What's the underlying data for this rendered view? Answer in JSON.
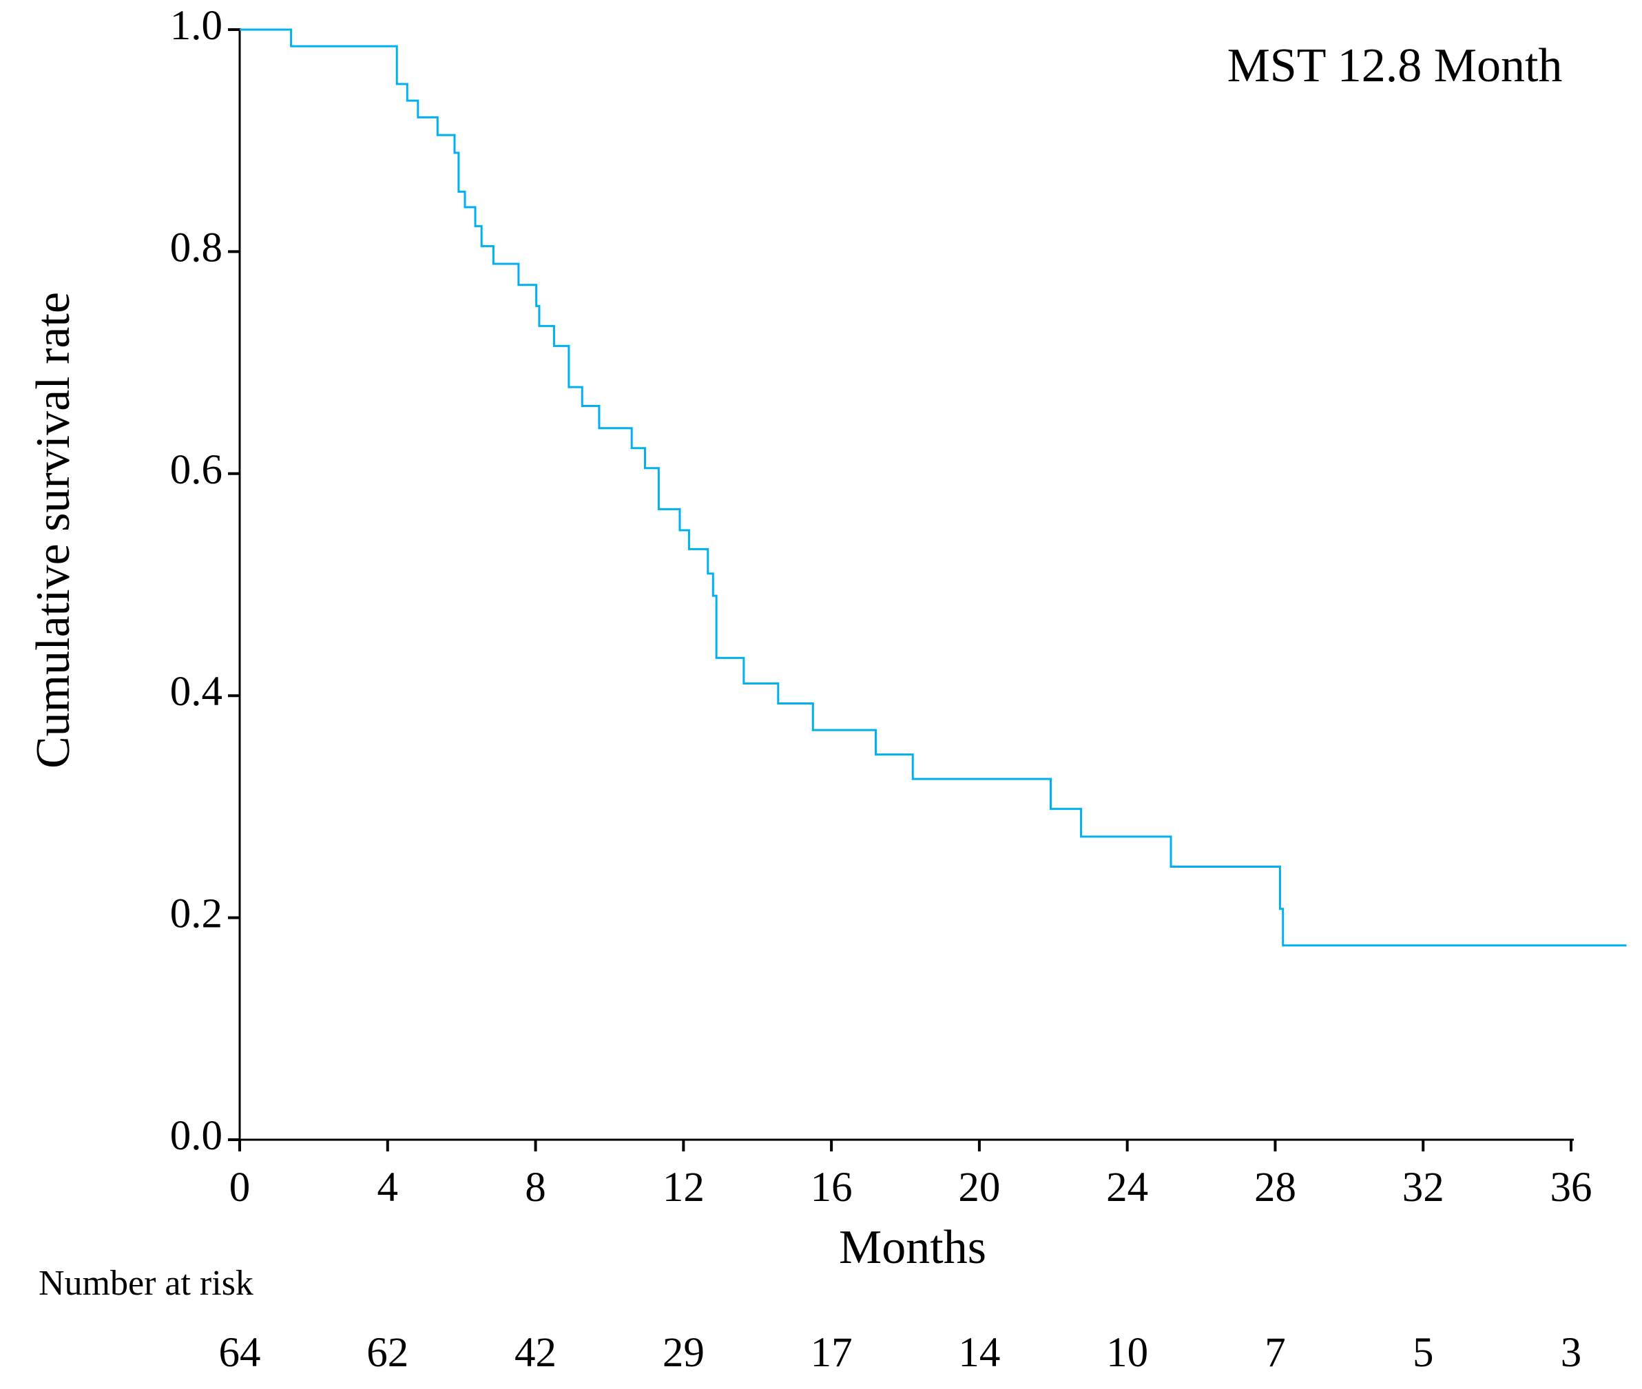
{
  "chart_data": {
    "type": "line",
    "step": "post",
    "x_label": "Months",
    "y_label": "Cumulative survival rate",
    "annotation": "MST 12.8 Month",
    "series": [
      {
        "color": "#00b0f0",
        "x": [
          0,
          1.39,
          4.25,
          4.53,
          4.82,
          5.35,
          5.81,
          5.92,
          6.09,
          6.37,
          6.54,
          6.86,
          7.54,
          8.02,
          8.1,
          8.5,
          8.9,
          9.26,
          9.72,
          10.6,
          10.96,
          11.33,
          11.9,
          12.15,
          12.66,
          12.8,
          12.89,
          13.63,
          14.56,
          15.5,
          17.2,
          18.2,
          21.93,
          22.75,
          25.18,
          28.13,
          28.21,
          37.5
        ],
        "values": [
          1.0,
          0.985,
          0.951,
          0.936,
          0.921,
          0.905,
          0.889,
          0.854,
          0.84,
          0.823,
          0.805,
          0.789,
          0.77,
          0.751,
          0.733,
          0.715,
          0.678,
          0.661,
          0.641,
          0.623,
          0.605,
          0.568,
          0.549,
          0.532,
          0.51,
          0.49,
          0.434,
          0.411,
          0.393,
          0.369,
          0.347,
          0.325,
          0.298,
          0.273,
          0.246,
          0.208,
          0.175,
          0.175
        ]
      }
    ],
    "xlim": [
      0,
      36
    ],
    "xticks": [
      0,
      4,
      8,
      12,
      16,
      20,
      24,
      28,
      32,
      36
    ],
    "ylim": [
      0,
      1
    ],
    "yticks": [
      {
        "value": 0,
        "label": "0.0"
      },
      {
        "value": 0.2,
        "label": "0.2"
      },
      {
        "value": 0.4,
        "label": "0.4"
      },
      {
        "value": 0.6,
        "label": "0.6"
      },
      {
        "value": 0.8,
        "label": "0.8"
      },
      {
        "value": 1,
        "label": "1.0"
      }
    ],
    "risk_table": {
      "label": "Number at risk",
      "values": [
        64,
        62,
        42,
        29,
        17,
        14,
        10,
        7,
        5,
        3
      ]
    }
  }
}
